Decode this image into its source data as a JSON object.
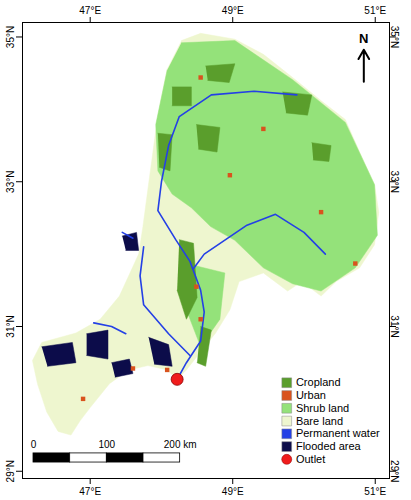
{
  "chart_data": {
    "type": "map",
    "xlim": [
      46.05,
      51.2
    ],
    "ylim": [
      28.9,
      35.2
    ],
    "xticks": [
      {
        "value": 47,
        "label": "47°E"
      },
      {
        "value": 49,
        "label": "49°E"
      },
      {
        "value": 51,
        "label": "51°E"
      }
    ],
    "yticks": [
      {
        "value": 29,
        "label": "29°N"
      },
      {
        "value": 31,
        "label": "31°N"
      },
      {
        "value": 33,
        "label": "33°N"
      },
      {
        "value": 35,
        "label": "35°N"
      }
    ],
    "grid": false,
    "legend": "bottom-right",
    "series": [
      {
        "name": "Cropland",
        "color": "#5a9e2c",
        "type": "polygon",
        "values": [
          [
            [
              48.15,
              34.31
            ],
            [
              48.42,
              34.31
            ],
            [
              48.42,
              34.05
            ],
            [
              48.15,
              34.05
            ]
          ],
          [
            [
              48.62,
              34.6
            ],
            [
              49.03,
              34.63
            ],
            [
              48.95,
              34.37
            ],
            [
              48.65,
              34.4
            ]
          ],
          [
            [
              49.7,
              34.24
            ],
            [
              50.11,
              34.2
            ],
            [
              50.05,
              33.92
            ],
            [
              49.75,
              33.95
            ]
          ],
          [
            [
              48.49,
              33.79
            ],
            [
              48.82,
              33.75
            ],
            [
              48.78,
              33.41
            ],
            [
              48.52,
              33.45
            ]
          ],
          [
            [
              47.95,
              33.67
            ],
            [
              48.15,
              33.65
            ],
            [
              48.12,
              33.15
            ],
            [
              47.97,
              33.2
            ]
          ],
          [
            [
              48.25,
              32.2
            ],
            [
              48.45,
              32.15
            ],
            [
              48.5,
              31.4
            ],
            [
              48.35,
              31.1
            ],
            [
              48.22,
              31.5
            ]
          ],
          [
            [
              48.55,
              31.0
            ],
            [
              48.7,
              30.95
            ],
            [
              48.62,
              30.45
            ],
            [
              48.5,
              30.5
            ]
          ],
          [
            [
              50.11,
              33.54
            ],
            [
              50.38,
              33.5
            ],
            [
              50.35,
              33.28
            ],
            [
              50.13,
              33.3
            ]
          ]
        ]
      },
      {
        "name": "Urban",
        "color": "#d9531e",
        "type": "point",
        "marker": "square",
        "values": [
          [
            48.55,
            34.44
          ],
          [
            49.43,
            33.73
          ],
          [
            48.96,
            33.09
          ],
          [
            48.55,
            31.1
          ],
          [
            48.49,
            31.55
          ],
          [
            47.6,
            30.42
          ],
          [
            46.9,
            30.0
          ],
          [
            48.08,
            30.4
          ],
          [
            50.72,
            31.87
          ],
          [
            50.24,
            32.58
          ]
        ]
      },
      {
        "name": "Shrub land",
        "color": "#94e27a",
        "type": "polygon",
        "values": [
          [
            [
              48.28,
              34.92
            ],
            [
              49.03,
              34.95
            ],
            [
              49.84,
              34.41
            ],
            [
              50.58,
              33.82
            ],
            [
              50.99,
              32.96
            ],
            [
              51.03,
              32.26
            ],
            [
              50.72,
              31.81
            ],
            [
              50.24,
              31.49
            ],
            [
              49.84,
              31.59
            ],
            [
              49.43,
              31.81
            ],
            [
              49.03,
              32.19
            ],
            [
              48.69,
              32.38
            ],
            [
              48.42,
              32.64
            ],
            [
              48.15,
              32.83
            ],
            [
              47.95,
              33.15
            ],
            [
              47.92,
              33.79
            ],
            [
              48.08,
              34.54
            ]
          ],
          [
            [
              48.35,
              31.87
            ],
            [
              48.89,
              31.74
            ],
            [
              48.82,
              31.1
            ],
            [
              48.55,
              30.72
            ],
            [
              48.35,
              31.23
            ]
          ]
        ]
      },
      {
        "name": "Bare land",
        "color": "#eef6cf",
        "type": "polygon",
        "values": [
          [
            [
              48.28,
              34.95
            ],
            [
              48.55,
              35.05
            ],
            [
              49.03,
              34.97
            ],
            [
              49.43,
              34.76
            ],
            [
              49.84,
              34.44
            ],
            [
              50.24,
              34.12
            ],
            [
              50.58,
              33.86
            ],
            [
              50.78,
              33.41
            ],
            [
              50.99,
              32.96
            ],
            [
              51.05,
              32.58
            ],
            [
              50.99,
              32.13
            ],
            [
              50.78,
              31.81
            ],
            [
              50.45,
              31.62
            ],
            [
              50.24,
              31.42
            ],
            [
              49.97,
              31.62
            ],
            [
              49.77,
              31.49
            ],
            [
              49.43,
              31.74
            ],
            [
              49.09,
              31.62
            ],
            [
              48.96,
              31.23
            ],
            [
              48.76,
              30.91
            ],
            [
              48.55,
              30.65
            ],
            [
              48.35,
              30.4
            ],
            [
              48.22,
              30.27
            ],
            [
              48.08,
              30.4
            ],
            [
              47.81,
              30.46
            ],
            [
              47.54,
              30.4
            ],
            [
              47.27,
              30.21
            ],
            [
              47.0,
              29.88
            ],
            [
              46.86,
              29.7
            ],
            [
              46.73,
              29.5
            ],
            [
              46.55,
              29.55
            ],
            [
              46.39,
              29.82
            ],
            [
              46.26,
              30.21
            ],
            [
              46.19,
              30.53
            ],
            [
              46.32,
              30.78
            ],
            [
              46.8,
              30.91
            ],
            [
              47.14,
              31.1
            ],
            [
              47.41,
              31.42
            ],
            [
              47.68,
              32.0
            ],
            [
              47.74,
              32.38
            ],
            [
              47.81,
              32.9
            ],
            [
              47.88,
              33.41
            ],
            [
              47.95,
              33.92
            ],
            [
              48.08,
              34.56
            ]
          ]
        ]
      },
      {
        "name": "Permanent water",
        "color": "#2440e6",
        "type": "line",
        "values": [
          [
            [
              49.9,
              34.2
            ],
            [
              49.3,
              34.25
            ],
            [
              48.7,
              34.2
            ],
            [
              48.25,
              33.9
            ],
            [
              48.1,
              33.5
            ],
            [
              48.0,
              33.0
            ],
            [
              47.95,
              32.6
            ],
            [
              48.2,
              32.2
            ],
            [
              48.4,
              31.9
            ],
            [
              48.55,
              31.5
            ],
            [
              48.6,
              31.2
            ],
            [
              48.55,
              30.8
            ],
            [
              48.35,
              30.5
            ],
            [
              48.22,
              30.27
            ]
          ],
          [
            [
              50.3,
              32.0
            ],
            [
              50.0,
              32.3
            ],
            [
              49.6,
              32.55
            ],
            [
              49.2,
              32.4
            ],
            [
              48.9,
              32.2
            ],
            [
              48.6,
              32.0
            ],
            [
              48.45,
              31.8
            ]
          ],
          [
            [
              47.75,
              32.1
            ],
            [
              47.7,
              31.7
            ],
            [
              47.75,
              31.3
            ],
            [
              48.1,
              30.9
            ],
            [
              48.4,
              30.6
            ]
          ],
          [
            [
              47.05,
              31.05
            ],
            [
              47.3,
              31.0
            ],
            [
              47.5,
              30.9
            ]
          ],
          [
            [
              47.45,
              32.3
            ],
            [
              47.6,
              32.22
            ]
          ]
        ]
      },
      {
        "name": "Flooded area",
        "color": "#0c0c4a",
        "type": "polygon",
        "values": [
          [
            [
              46.32,
              30.72
            ],
            [
              46.75,
              30.78
            ],
            [
              46.8,
              30.5
            ],
            [
              46.4,
              30.45
            ]
          ],
          [
            [
              46.95,
              30.9
            ],
            [
              47.25,
              30.95
            ],
            [
              47.25,
              30.55
            ],
            [
              46.95,
              30.6
            ]
          ],
          [
            [
              47.82,
              30.85
            ],
            [
              48.1,
              30.75
            ],
            [
              48.15,
              30.45
            ],
            [
              47.9,
              30.48
            ]
          ],
          [
            [
              47.3,
              30.5
            ],
            [
              47.55,
              30.55
            ],
            [
              47.6,
              30.35
            ],
            [
              47.35,
              30.3
            ]
          ],
          [
            [
              47.45,
              32.25
            ],
            [
              47.65,
              32.3
            ],
            [
              47.68,
              32.05
            ],
            [
              47.5,
              32.05
            ]
          ]
        ]
      },
      {
        "name": "Outlet",
        "color": "#f01c1c",
        "type": "point",
        "marker": "circle",
        "values": [
          [
            48.22,
            30.27
          ]
        ]
      }
    ],
    "scale_bar": {
      "ticks": [
        0,
        100,
        {
          "value": 200,
          "label": "200 km"
        }
      ]
    },
    "north_arrow": "N"
  }
}
